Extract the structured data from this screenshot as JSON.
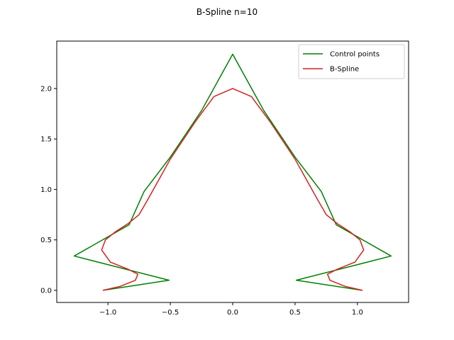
{
  "chart_data": {
    "type": "line",
    "title": "B-Spline n=10",
    "xlabel": "",
    "ylabel": "",
    "xlim": [
      -1.41,
      1.41
    ],
    "ylim": [
      -0.12,
      2.47
    ],
    "grid": false,
    "legend_position": "top-right",
    "xticks": [
      -1.0,
      -0.5,
      0.0,
      0.5,
      1.0
    ],
    "xtick_labels": [
      "−1.0",
      "−0.5",
      "0.0",
      "0.5",
      "1.0"
    ],
    "yticks": [
      0.0,
      0.5,
      1.0,
      1.5,
      2.0
    ],
    "ytick_labels": [
      "0.0",
      "0.5",
      "1.0",
      "1.5",
      "2.0"
    ],
    "series": [
      {
        "name": "Control points",
        "color": "#008000",
        "x": [
          -1.04,
          -0.51,
          -1.27,
          -0.83,
          -0.71,
          -0.5,
          -0.25,
          0.0,
          0.25,
          0.5,
          0.71,
          0.83,
          1.27,
          0.51,
          1.04
        ],
        "y": [
          0.0,
          0.1,
          0.34,
          0.65,
          0.98,
          1.32,
          1.78,
          2.34,
          1.78,
          1.32,
          0.98,
          0.65,
          0.34,
          0.1,
          0.0
        ]
      },
      {
        "name": "B-Spline",
        "color": "#d62020",
        "x": [
          -1.04,
          -0.9,
          -0.78,
          -0.76,
          -0.84,
          -0.98,
          -1.05,
          -1.02,
          -0.94,
          -0.84,
          -0.75,
          -0.68,
          -0.5,
          -0.3,
          -0.15,
          0.0,
          0.15,
          0.3,
          0.5,
          0.68,
          0.75,
          0.84,
          0.94,
          1.02,
          1.05,
          0.98,
          0.84,
          0.76,
          0.78,
          0.9,
          1.04
        ],
        "y": [
          0.0,
          0.04,
          0.1,
          0.16,
          0.21,
          0.28,
          0.4,
          0.5,
          0.58,
          0.66,
          0.75,
          0.9,
          1.3,
          1.67,
          1.92,
          2.0,
          1.92,
          1.67,
          1.3,
          0.9,
          0.75,
          0.66,
          0.58,
          0.5,
          0.4,
          0.28,
          0.21,
          0.16,
          0.1,
          0.04,
          0.0
        ]
      }
    ]
  }
}
